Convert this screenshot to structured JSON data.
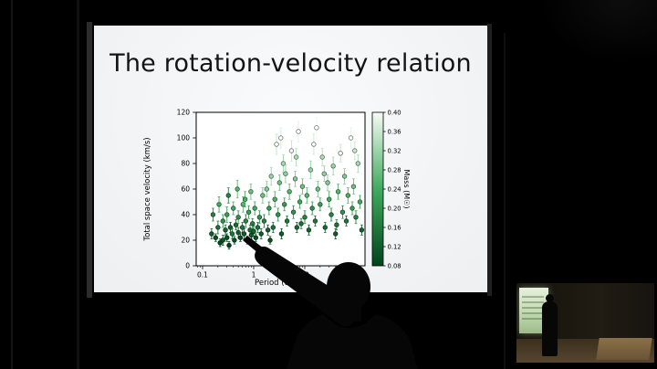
{
  "slide": {
    "title": "The rotation-velocity relation"
  },
  "chart_data": {
    "type": "scatter",
    "title": "",
    "xlabel": "Period (days)",
    "ylabel": "Total space velocity (km/s)",
    "xscale": "log",
    "xlim": [
      0.08,
      150
    ],
    "ylim": [
      0,
      120
    ],
    "xticks": [
      0.1,
      1,
      10,
      100
    ],
    "xtick_labels": [
      "0.1",
      "1",
      "10",
      "100"
    ],
    "yticks": [
      0,
      20,
      40,
      60,
      80,
      100,
      120
    ],
    "grid": false,
    "legend": "none",
    "colorbar": {
      "label": "Mass (M☉)",
      "ticks": [
        0.4,
        0.36,
        0.32,
        0.28,
        0.24,
        0.2,
        0.16,
        0.12,
        0.08
      ],
      "tick_labels": [
        "0.40",
        "0.36",
        "0.32",
        "0.28",
        "0.24",
        "0.20",
        "0.16",
        "0.12",
        "0.08"
      ],
      "cmap_stops": [
        {
          "value": 0.08,
          "color": "#00441b"
        },
        {
          "value": 0.24,
          "color": "#41ab5d"
        },
        {
          "value": 0.4,
          "color": "#f7fcf5"
        }
      ]
    },
    "series": [
      {
        "name": "stars",
        "marker": "circle-with-errorbar",
        "point_format": [
          "period_days",
          "velocity_kms",
          "mass_msun",
          "err_kms",
          "open_marker"
        ],
        "points": [
          [
            0.15,
            25,
            0.12,
            4
          ],
          [
            0.18,
            22,
            0.1,
            3
          ],
          [
            0.2,
            30,
            0.15,
            5
          ],
          [
            0.22,
            18,
            0.09,
            3
          ],
          [
            0.25,
            35,
            0.2,
            5
          ],
          [
            0.25,
            20,
            0.11,
            4
          ],
          [
            0.28,
            28,
            0.13,
            4
          ],
          [
            0.3,
            40,
            0.22,
            6
          ],
          [
            0.3,
            22,
            0.1,
            3
          ],
          [
            0.32,
            55,
            0.18,
            6
          ],
          [
            0.35,
            30,
            0.12,
            4
          ],
          [
            0.38,
            25,
            0.16,
            4
          ],
          [
            0.4,
            45,
            0.24,
            5
          ],
          [
            0.42,
            20,
            0.1,
            3
          ],
          [
            0.45,
            32,
            0.14,
            4
          ],
          [
            0.5,
            26,
            0.12,
            4
          ],
          [
            0.5,
            38,
            0.2,
            5
          ],
          [
            0.55,
            22,
            0.1,
            3
          ],
          [
            0.6,
            30,
            0.16,
            4
          ],
          [
            0.62,
            48,
            0.26,
            6
          ],
          [
            0.65,
            25,
            0.12,
            4
          ],
          [
            0.7,
            35,
            0.18,
            5
          ],
          [
            0.75,
            20,
            0.09,
            3
          ],
          [
            0.8,
            42,
            0.22,
            5
          ],
          [
            0.85,
            28,
            0.14,
            4
          ],
          [
            0.9,
            24,
            0.11,
            3
          ],
          [
            0.95,
            33,
            0.17,
            4
          ],
          [
            1.0,
            27,
            0.13,
            4
          ],
          [
            1.05,
            45,
            0.24,
            5
          ],
          [
            1.1,
            22,
            0.1,
            3
          ],
          [
            1.2,
            30,
            0.15,
            4
          ],
          [
            1.3,
            38,
            0.2,
            5
          ],
          [
            1.4,
            25,
            0.12,
            4
          ],
          [
            1.5,
            55,
            0.28,
            6
          ],
          [
            0.16,
            40,
            0.18,
            5
          ],
          [
            0.21,
            48,
            0.24,
            6
          ],
          [
            0.33,
            16,
            0.08,
            3
          ],
          [
            0.48,
            60,
            0.26,
            7
          ],
          [
            0.68,
            52,
            0.25,
            6
          ],
          [
            0.88,
            58,
            0.28,
            6
          ],
          [
            1.6,
            35,
            0.18,
            5
          ],
          [
            1.8,
            60,
            0.3,
            6
          ],
          [
            1.9,
            28,
            0.13,
            4
          ],
          [
            2.0,
            45,
            0.22,
            5
          ],
          [
            2.1,
            20,
            0.1,
            3
          ],
          [
            2.2,
            70,
            0.32,
            7
          ],
          [
            2.4,
            30,
            0.15,
            4
          ],
          [
            2.6,
            52,
            0.25,
            6
          ],
          [
            2.8,
            95,
            0.35,
            8,
            1
          ],
          [
            3.0,
            40,
            0.2,
            5
          ],
          [
            3.2,
            65,
            0.28,
            6
          ],
          [
            3.4,
            100,
            0.37,
            8,
            1
          ],
          [
            3.5,
            25,
            0.12,
            4
          ],
          [
            3.8,
            80,
            0.33,
            7
          ],
          [
            4.0,
            48,
            0.22,
            5
          ],
          [
            4.2,
            72,
            0.31,
            7
          ],
          [
            4.5,
            35,
            0.16,
            4
          ],
          [
            5.0,
            58,
            0.26,
            6
          ],
          [
            5.5,
            90,
            0.36,
            8,
            1
          ],
          [
            6.0,
            42,
            0.2,
            5
          ],
          [
            6.5,
            68,
            0.3,
            6
          ],
          [
            6.8,
            85,
            0.34,
            7
          ],
          [
            7.0,
            30,
            0.14,
            4
          ],
          [
            7.5,
            105,
            0.38,
            8,
            1
          ],
          [
            8.0,
            50,
            0.24,
            5
          ],
          [
            8.5,
            33,
            0.15,
            4
          ],
          [
            9.0,
            62,
            0.28,
            6
          ],
          [
            10,
            38,
            0.18,
            5
          ],
          [
            11,
            55,
            0.26,
            6
          ],
          [
            12,
            28,
            0.13,
            4
          ],
          [
            13,
            75,
            0.32,
            7
          ],
          [
            14,
            45,
            0.2,
            5
          ],
          [
            15,
            95,
            0.36,
            8,
            1
          ],
          [
            16,
            35,
            0.16,
            4
          ],
          [
            17,
            108,
            0.39,
            8,
            1
          ],
          [
            18,
            60,
            0.28,
            6
          ],
          [
            20,
            48,
            0.22,
            5
          ],
          [
            22,
            85,
            0.34,
            7
          ],
          [
            24,
            72,
            0.31,
            6
          ],
          [
            25,
            30,
            0.14,
            4
          ],
          [
            28,
            65,
            0.3,
            6
          ],
          [
            30,
            52,
            0.24,
            6
          ],
          [
            33,
            40,
            0.18,
            5
          ],
          [
            36,
            78,
            0.32,
            7
          ],
          [
            40,
            25,
            0.12,
            4
          ],
          [
            42,
            32,
            0.15,
            4
          ],
          [
            45,
            58,
            0.26,
            6
          ],
          [
            50,
            88,
            0.35,
            7,
            1
          ],
          [
            55,
            42,
            0.2,
            5
          ],
          [
            60,
            70,
            0.3,
            6
          ],
          [
            65,
            35,
            0.16,
            4
          ],
          [
            70,
            55,
            0.25,
            6
          ],
          [
            80,
            100,
            0.38,
            8,
            1
          ],
          [
            85,
            45,
            0.22,
            5
          ],
          [
            90,
            62,
            0.28,
            6
          ],
          [
            95,
            90,
            0.36,
            7
          ],
          [
            100,
            38,
            0.18,
            5
          ],
          [
            110,
            80,
            0.33,
            7
          ],
          [
            120,
            50,
            0.24,
            5
          ],
          [
            130,
            28,
            0.13,
            4
          ]
        ]
      }
    ]
  }
}
